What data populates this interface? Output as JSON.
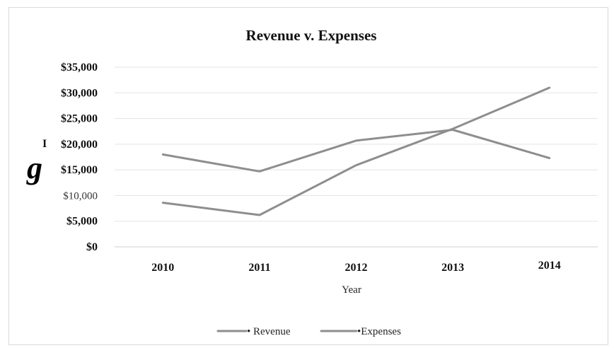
{
  "chart_data": {
    "type": "line",
    "title": "Revenue v. Expenses",
    "xlabel": "Year",
    "ylabel": "",
    "categories": [
      "2010",
      "2011",
      "2012",
      "2013",
      "2014"
    ],
    "series": [
      {
        "name": "• Revenue",
        "values": [
          18000,
          14700,
          20700,
          22800,
          17300
        ]
      },
      {
        "name": "•Expenses",
        "values": [
          8600,
          6200,
          15900,
          23000,
          31000
        ]
      }
    ],
    "ylim": [
      0,
      35000
    ],
    "yticks": [
      {
        "value": 0,
        "label": "$0"
      },
      {
        "value": 5000,
        "label": "$5,000"
      },
      {
        "value": 10000,
        "label": "$10,000"
      },
      {
        "value": 15000,
        "label": "$15,000"
      },
      {
        "value": 20000,
        "label": "$20,000"
      },
      {
        "value": 25000,
        "label": "$25,000"
      },
      {
        "value": 30000,
        "label": "$30,000"
      },
      {
        "value": 35000,
        "label": "$35,000"
      }
    ],
    "grid": true,
    "legend_position": "bottom",
    "series_color": "#8e8e8e",
    "stray_marks": {
      "g_mark": "g",
      "i_mark": "I"
    }
  }
}
